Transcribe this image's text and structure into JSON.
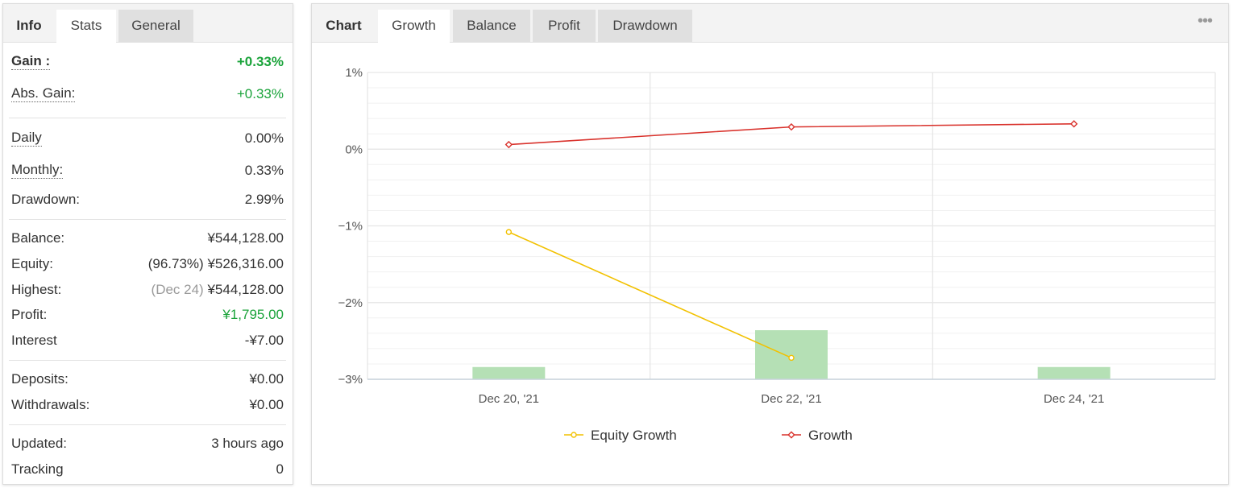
{
  "left_panel": {
    "tabs": [
      {
        "label": "Info"
      },
      {
        "label": "Stats"
      },
      {
        "label": "General"
      }
    ],
    "rows": [
      {
        "label": "Gain :",
        "value": "+0.33%"
      },
      {
        "label": "Abs. Gain:",
        "value": "+0.33%"
      },
      {
        "label": "Daily",
        "value": "0.00%"
      },
      {
        "label": "Monthly:",
        "value": "0.33%"
      },
      {
        "label": "Drawdown:",
        "value": "2.99%"
      },
      {
        "label": "Balance:",
        "value": "¥544,128.00"
      },
      {
        "label": "Equity:",
        "prefix": "(96.73%)",
        "value": "¥526,316.00"
      },
      {
        "label": "Highest:",
        "prefix": "(Dec 24)",
        "value": "¥544,128.00"
      },
      {
        "label": "Profit:",
        "value": "¥1,795.00"
      },
      {
        "label": "Interest",
        "value": "-¥7.00"
      },
      {
        "label": "Deposits:",
        "value": "¥0.00"
      },
      {
        "label": "Withdrawals:",
        "value": "¥0.00"
      },
      {
        "label": "Updated:",
        "value": "3 hours ago"
      },
      {
        "label": "Tracking",
        "value": "0"
      }
    ]
  },
  "right_panel": {
    "tabs": [
      {
        "label": "Chart"
      },
      {
        "label": "Growth"
      },
      {
        "label": "Balance"
      },
      {
        "label": "Profit"
      },
      {
        "label": "Drawdown"
      }
    ],
    "menu_icon": "more-dots-icon"
  },
  "colors": {
    "positive": "#1aa33a",
    "equity_line": "#f2c100",
    "growth_line": "#d9322c",
    "bar_fill": "#b5e0b5",
    "grid": "#e6e6e6"
  },
  "chart_data": {
    "type": "line",
    "categories": [
      "Dec 20, '21",
      "Dec 22, '21",
      "Dec 24, '21"
    ],
    "y_ticks": [
      "1%",
      "0%",
      "−1%",
      "−2%",
      "−3%"
    ],
    "ylim": [
      -3,
      1
    ],
    "grid": true,
    "legend_position": "bottom",
    "series": [
      {
        "name": "Equity Growth",
        "type": "line",
        "color": "#f2c100",
        "values": [
          -1.08,
          -2.72,
          null
        ]
      },
      {
        "name": "Growth",
        "type": "line",
        "color": "#d9322c",
        "values": [
          0.06,
          0.29,
          0.33
        ]
      }
    ],
    "bars": {
      "color": "#b5e0b5",
      "values": [
        0.2,
        0.8,
        0.2
      ]
    }
  }
}
